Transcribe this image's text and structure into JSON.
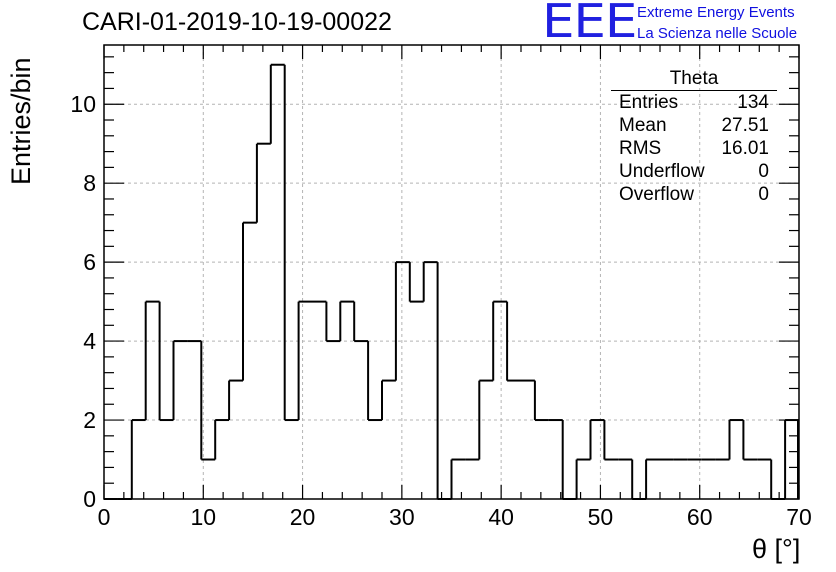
{
  "header": {
    "title": "CARI-01-2019-10-19-00022",
    "logo_text": "EEE",
    "logo_line1": "Extreme Energy Events",
    "logo_line2": "La Scienza nelle Scuole",
    "logo_color": "#1c1ce0"
  },
  "stats": {
    "title": "Theta",
    "rows": [
      {
        "label": "Entries",
        "value": "134"
      },
      {
        "label": "Mean",
        "value": "27.51"
      },
      {
        "label": "RMS",
        "value": "16.01"
      },
      {
        "label": "Underflow",
        "value": "0"
      },
      {
        "label": "Overflow",
        "value": "0"
      }
    ]
  },
  "chart_data": {
    "type": "bar",
    "style": "step-histogram",
    "xlabel": "θ [°]",
    "ylabel": "Entries/bin",
    "xlim": [
      0,
      70
    ],
    "ylim": [
      0,
      11.5
    ],
    "grid": true,
    "bin_width": 1.4,
    "x_ticks": [
      "0",
      "10",
      "20",
      "30",
      "40",
      "50",
      "60",
      "70"
    ],
    "y_ticks": [
      "0",
      "2",
      "4",
      "6",
      "8",
      "10"
    ],
    "bin_edges": [
      0,
      1.4,
      2.8,
      4.2,
      5.6,
      7.0,
      8.4,
      9.8,
      11.2,
      12.6,
      14.0,
      15.4,
      16.8,
      18.2,
      19.6,
      21.0,
      22.4,
      23.8,
      25.2,
      26.6,
      28.0,
      29.4,
      30.8,
      32.2,
      33.6,
      35.0,
      36.4,
      37.8,
      39.2,
      40.6,
      42.0,
      43.4,
      44.8,
      46.2,
      47.6,
      49.0,
      50.4,
      51.8,
      53.2,
      54.6,
      56.0,
      57.4,
      58.8,
      60.2,
      61.6,
      63.0,
      64.4,
      65.8,
      67.2,
      68.6,
      70.0
    ],
    "values": [
      0,
      0,
      2,
      5,
      2,
      4,
      4,
      1,
      2,
      3,
      7,
      9,
      11,
      2,
      5,
      5,
      4,
      5,
      4,
      2,
      3,
      6,
      5,
      6,
      0,
      1,
      1,
      3,
      5,
      3,
      3,
      2,
      2,
      0,
      1,
      2,
      1,
      1,
      0,
      1,
      1,
      1,
      1,
      1,
      1,
      2,
      1,
      1,
      0,
      2
    ]
  }
}
